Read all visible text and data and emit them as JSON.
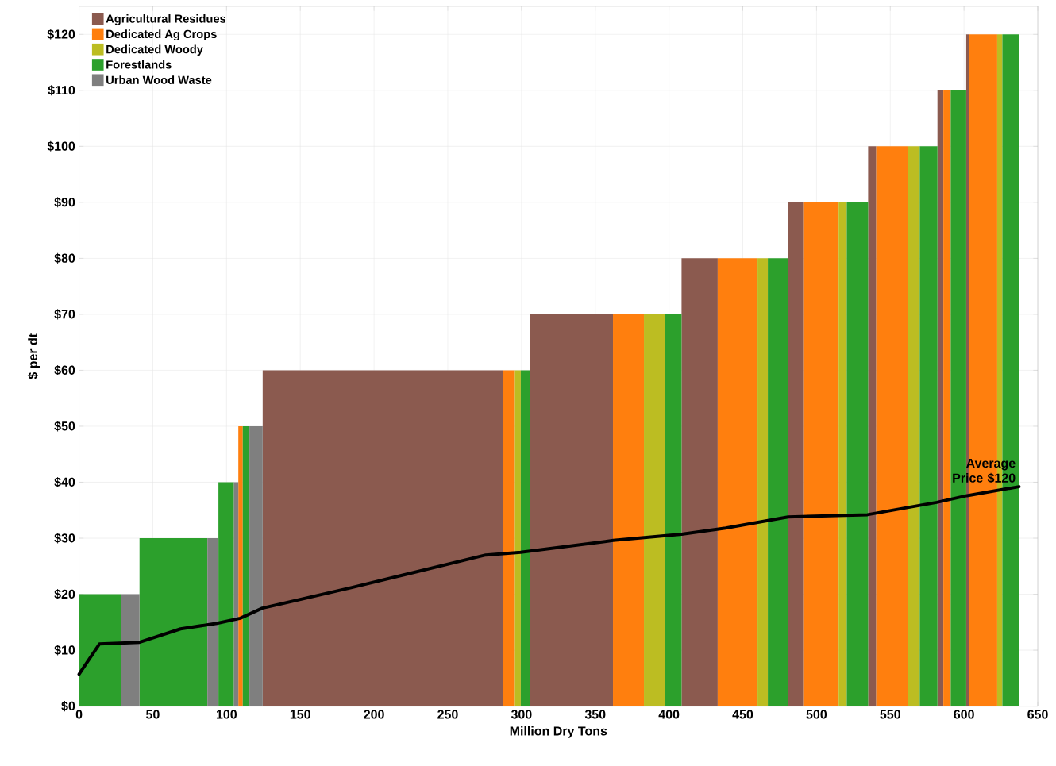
{
  "chart_data": {
    "type": "area",
    "xlabel": "Million Dry Tons",
    "ylabel": "$ per dt",
    "xlim": [
      0,
      650
    ],
    "ylim": [
      0,
      125
    ],
    "xticks": [
      0,
      50,
      100,
      150,
      200,
      250,
      300,
      350,
      400,
      450,
      500,
      550,
      600,
      650
    ],
    "yticks": [
      {
        "value": 0,
        "label": "$0"
      },
      {
        "value": 10,
        "label": "$10"
      },
      {
        "value": 20,
        "label": "$20"
      },
      {
        "value": 30,
        "label": "$30"
      },
      {
        "value": 40,
        "label": "$40"
      },
      {
        "value": 50,
        "label": "$50"
      },
      {
        "value": 60,
        "label": "$60"
      },
      {
        "value": 70,
        "label": "$70"
      },
      {
        "value": 80,
        "label": "$80"
      },
      {
        "value": 90,
        "label": "$90"
      },
      {
        "value": 100,
        "label": "$100"
      },
      {
        "value": 110,
        "label": "$110"
      },
      {
        "value": 120,
        "label": "$120"
      }
    ],
    "grid": true,
    "legend": "top left",
    "series": [
      {
        "name": "Agricultural Residues",
        "color": "#8b5a4f",
        "x": [
          124.5,
          287.5,
          305.5,
          362,
          408.5,
          433,
          480.5,
          491,
          535,
          540.5,
          582,
          586,
          601.5,
          603.5
        ],
        "values": [
          60,
          60,
          70,
          70,
          80,
          80,
          90,
          90,
          100,
          100,
          110,
          110,
          120,
          120
        ]
      },
      {
        "name": "Dedicated Ag Crops",
        "color": "#ff7f0e",
        "x": [
          108,
          111,
          287.5,
          295,
          362,
          383,
          433,
          460,
          491,
          515,
          540.5,
          562,
          586,
          591,
          603.5,
          622.5
        ],
        "values": [
          50,
          50,
          60,
          60,
          70,
          70,
          80,
          80,
          90,
          90,
          100,
          100,
          110,
          110,
          120,
          120
        ]
      },
      {
        "name": "Dedicated Woody",
        "color": "#bcbd22",
        "x": [
          295,
          299.5,
          383,
          397.5,
          460,
          467,
          515,
          520.5,
          562,
          570,
          622.5,
          626
        ],
        "values": [
          60,
          60,
          70,
          70,
          80,
          80,
          90,
          90,
          100,
          100,
          120,
          120
        ]
      },
      {
        "name": "Forestlands",
        "color": "#2ca02c",
        "x": [
          0,
          28.5,
          41,
          87,
          94.5,
          105,
          111,
          115.5,
          299.5,
          305.5,
          397.5,
          408.5,
          467,
          480.5,
          520.5,
          535,
          570,
          582,
          591,
          601.5,
          626,
          637.5
        ],
        "values": [
          20,
          20,
          30,
          30,
          40,
          40,
          50,
          50,
          60,
          60,
          70,
          70,
          80,
          80,
          90,
          90,
          100,
          100,
          110,
          110,
          120,
          120
        ]
      },
      {
        "name": "Urban Wood Waste",
        "color": "#7f7f7f",
        "x": [
          28.5,
          41,
          87,
          94.5,
          105,
          108,
          115.5,
          124.5
        ],
        "values": [
          20,
          20,
          30,
          30,
          40,
          40,
          50,
          50
        ]
      },
      {
        "name": "Average Price $120",
        "type": "line",
        "color": "#000000",
        "x": [
          0,
          13.8,
          41,
          68.8,
          93.5,
          109.3,
          124.3,
          185,
          275.7,
          299.4,
          362.2,
          408.5,
          438.4,
          480.7,
          534.5,
          581.5,
          602,
          637.3
        ],
        "values": [
          5.7,
          11.1,
          11.4,
          13.8,
          14.8,
          15.7,
          17.5,
          21.2,
          27,
          27.5,
          29.6,
          30.7,
          31.8,
          33.8,
          34.2,
          36.4,
          37.6,
          39.2
        ]
      }
    ]
  }
}
